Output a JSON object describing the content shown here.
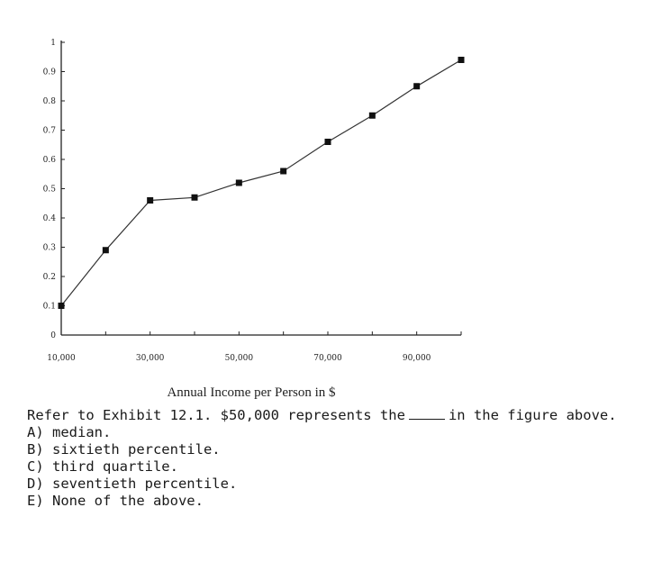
{
  "chart_data": {
    "type": "line",
    "title": "",
    "xlabel": "Annual Income per Person in $",
    "ylabel": "",
    "x": [
      10000,
      20000,
      30000,
      40000,
      50000,
      60000,
      70000,
      80000,
      90000,
      100000
    ],
    "y": [
      0.1,
      0.29,
      0.46,
      0.47,
      0.52,
      0.56,
      0.66,
      0.75,
      0.85,
      0.94
    ],
    "xlim": [
      10000,
      100000
    ],
    "ylim": [
      0,
      1
    ],
    "xticks": [
      "10,000",
      "30,000",
      "50,000",
      "70,000",
      "90,000"
    ],
    "yticks": [
      "0",
      "0.1",
      "0.2",
      "0.3",
      "0.4",
      "0.5",
      "0.6",
      "0.7",
      "0.8",
      "0.9",
      "1"
    ],
    "grid": false,
    "legend": "none",
    "line_color": "#333333",
    "marker_color": "#111111"
  },
  "question": {
    "stem_before_blank": "Refer to Exhibit 12.1. $50,000 represents the",
    "stem_after_blank": "in the figure above.",
    "options": [
      "A) median.",
      "B) sixtieth percentile.",
      "C) third quartile.",
      "D) seventieth percentile.",
      "E) None of the above."
    ]
  }
}
